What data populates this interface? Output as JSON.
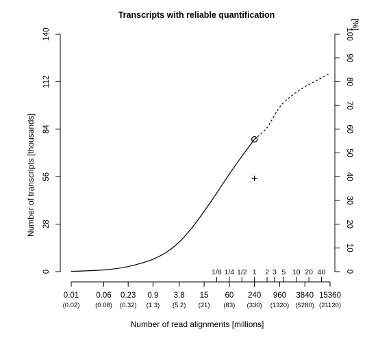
{
  "chart_data": {
    "type": "line",
    "title": "Transcripts with reliable quantification",
    "xlabel": "Number of read alignments [millions]",
    "ylabel": "Number of transcripts [thousands]",
    "y2label": "[%]",
    "x_scale": "log2",
    "ylim": [
      0,
      140
    ],
    "y2lim": [
      0,
      100
    ],
    "x_ticks": [
      0.01,
      0.06,
      0.23,
      0.9,
      3.8,
      15,
      60,
      240,
      960,
      3840,
      15360
    ],
    "x_tick_labels": [
      "0.01",
      "0.06",
      "0.23",
      "0.9",
      "3.8",
      "15",
      "60",
      "240",
      "960",
      "3840",
      "15360"
    ],
    "x_sub_labels": [
      "(0.02)",
      "(0.08)",
      "(0.32)",
      "(1.3)",
      "(5.2)",
      "(21)",
      "(83)",
      "(330)",
      "(1320)",
      "(5280)",
      "(21120)"
    ],
    "y_ticks": [
      0,
      28,
      56,
      84,
      112,
      140
    ],
    "y2_ticks": [
      0,
      10,
      20,
      30,
      40,
      50,
      60,
      70,
      80,
      90,
      100
    ],
    "fraction_ticks": [
      {
        "label": "1/8",
        "x": 30
      },
      {
        "label": "1/4",
        "x": 60
      },
      {
        "label": "1/2",
        "x": 120
      },
      {
        "label": "1",
        "x": 240
      },
      {
        "label": "2",
        "x": 480
      },
      {
        "label": "3",
        "x": 720
      },
      {
        "label": "5",
        "x": 1200
      },
      {
        "label": "10",
        "x": 2400
      },
      {
        "label": "20",
        "x": 4800
      },
      {
        "label": "40",
        "x": 9600
      }
    ],
    "series": [
      {
        "style": "solid",
        "x": [
          0.01,
          0.02,
          0.06,
          0.12,
          0.23,
          0.45,
          0.9,
          1.9,
          3.8,
          7.5,
          15,
          30,
          60,
          120,
          240
        ],
        "y": [
          0.2,
          0.4,
          1.0,
          1.8,
          3.0,
          4.8,
          7.3,
          11.5,
          17.4,
          25.5,
          35.5,
          46.3,
          57.5,
          68.0,
          78.0
        ]
      },
      {
        "style": "dashed",
        "x": [
          240,
          480,
          960,
          1920,
          3840,
          7680,
          15360
        ],
        "y": [
          78.0,
          85.0,
          97.0,
          104.0,
          109.0,
          113.0,
          117.0
        ]
      }
    ],
    "markers": [
      {
        "symbol": "circle",
        "x": 240,
        "y": 78.0
      },
      {
        "symbol": "plus",
        "x": 240,
        "y": 55.0
      }
    ]
  }
}
